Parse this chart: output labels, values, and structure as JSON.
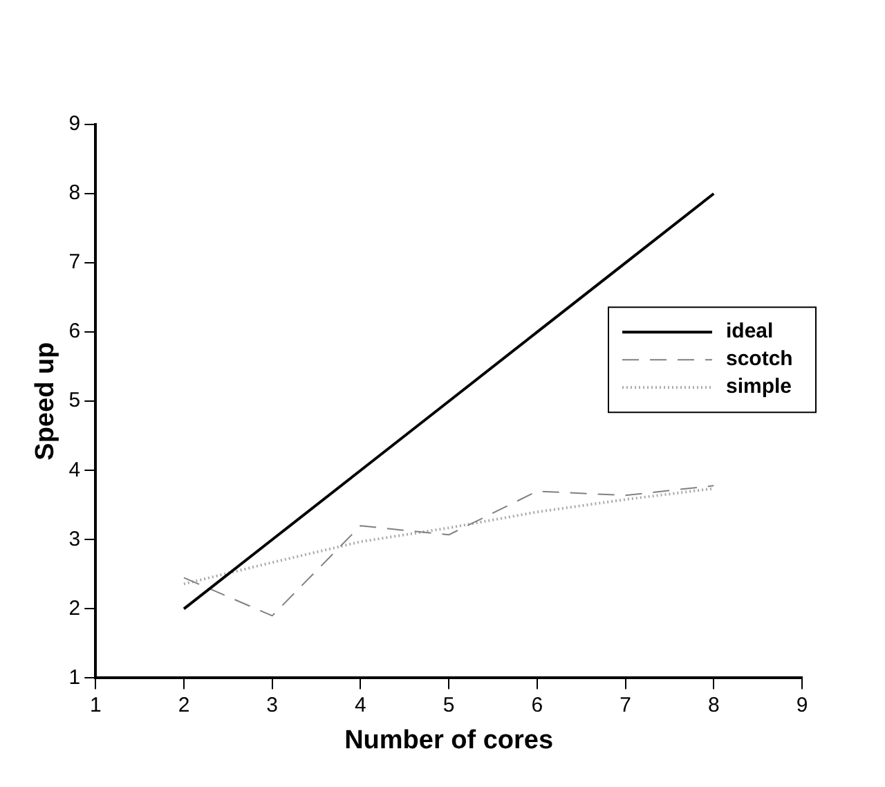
{
  "chart_data": {
    "type": "line",
    "xlabel": "Number of cores",
    "ylabel": "Speed up",
    "x": [
      2,
      3,
      4,
      5,
      6,
      7,
      8
    ],
    "series": [
      {
        "name": "ideal",
        "color": "#000000",
        "line_style": "solid",
        "values": [
          2,
          3,
          4,
          5,
          6,
          7,
          8
        ]
      },
      {
        "name": "scotch",
        "color": "#808080",
        "line_style": "dashed",
        "values": [
          2.45,
          1.9,
          3.2,
          3.07,
          3.7,
          3.64,
          3.78
        ]
      },
      {
        "name": "simple",
        "color": "#aaaaaa",
        "line_style": "dotted",
        "values": [
          2.36,
          2.67,
          2.97,
          3.17,
          3.4,
          3.58,
          3.74
        ]
      }
    ],
    "xlim": [
      1,
      9
    ],
    "xticks": [
      1,
      2,
      3,
      4,
      5,
      6,
      7,
      8,
      9
    ],
    "ylim": [
      1,
      9
    ],
    "yticks": [
      1,
      2,
      3,
      4,
      5,
      6,
      7,
      8,
      9
    ],
    "grid": false,
    "legend": "right",
    "marker": "none"
  }
}
